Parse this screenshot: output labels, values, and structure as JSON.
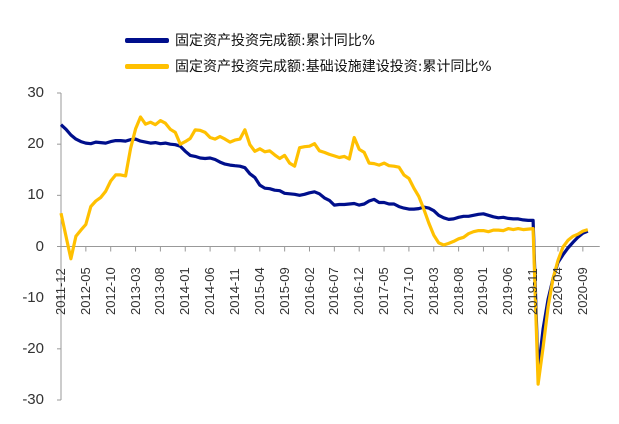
{
  "chart_data": {
    "type": "line",
    "title": "",
    "xlabel": "",
    "ylabel": "",
    "ylim": [
      -30,
      30
    ],
    "yticks": [
      30,
      20,
      10,
      0,
      -10,
      -20,
      -30
    ],
    "xtick_labels": [
      "2011-12",
      "2012-05",
      "2012-10",
      "2013-03",
      "2013-08",
      "2014-01",
      "2014-06",
      "2014-11",
      "2015-04",
      "2015-09",
      "2016-02",
      "2016-07",
      "2016-12",
      "2017-05",
      "2017-10",
      "2018-03",
      "2018-08",
      "2019-01",
      "2019-06",
      "2019-11",
      "2020-04",
      "2020-09"
    ],
    "grid": false,
    "legend_position": "top",
    "x_start": "2011-12",
    "x_end": "2020-12",
    "series": [
      {
        "name": "固定资产投资完成额:累计同比%",
        "color": "#000F8C",
        "values": [
          23.8,
          22.9,
          21.8,
          21.0,
          20.5,
          20.2,
          20.1,
          20.4,
          20.3,
          20.2,
          20.5,
          20.7,
          20.7,
          20.6,
          20.9,
          21.0,
          20.6,
          20.4,
          20.2,
          20.3,
          20.1,
          20.2,
          20.0,
          19.9,
          19.6,
          18.6,
          17.8,
          17.6,
          17.3,
          17.2,
          17.3,
          17.0,
          16.5,
          16.1,
          15.9,
          15.8,
          15.7,
          15.4,
          14.2,
          13.5,
          12.0,
          11.4,
          11.3,
          11.0,
          10.9,
          10.4,
          10.3,
          10.2,
          10.0,
          10.2,
          10.5,
          10.7,
          10.3,
          9.5,
          9.0,
          8.1,
          8.2,
          8.2,
          8.3,
          8.4,
          8.1,
          8.3,
          8.9,
          9.2,
          8.6,
          8.6,
          8.3,
          8.3,
          7.8,
          7.5,
          7.3,
          7.3,
          7.4,
          7.7,
          7.5,
          7.0,
          6.1,
          5.6,
          5.3,
          5.4,
          5.7,
          5.9,
          5.9,
          6.1,
          6.3,
          6.4,
          6.1,
          5.8,
          5.6,
          5.7,
          5.5,
          5.4,
          5.4,
          5.2,
          5.1,
          5.1,
          -24.5,
          -16.1,
          -10.3,
          -6.3,
          -3.1,
          -1.6,
          -0.3,
          0.8,
          1.8,
          2.6,
          3.0
        ],
        "start": "2011-12"
      },
      {
        "name": "固定资产投资完成额:基础设施建设投资:累计同比%",
        "color": "#FFC000",
        "values": [
          6.5,
          2.0,
          -2.4,
          2.0,
          3.2,
          4.3,
          7.8,
          8.9,
          9.6,
          10.8,
          12.8,
          14.0,
          14.0,
          13.8,
          19.2,
          23.0,
          25.3,
          23.9,
          24.3,
          23.8,
          24.6,
          24.1,
          22.9,
          22.3,
          20.0,
          20.5,
          21.1,
          22.8,
          22.7,
          22.3,
          21.3,
          21.0,
          21.5,
          21.0,
          20.4,
          20.8,
          21.0,
          22.8,
          19.9,
          18.6,
          19.1,
          18.5,
          18.7,
          17.9,
          17.2,
          17.8,
          16.3,
          15.7,
          19.3,
          19.5,
          19.6,
          20.1,
          18.7,
          18.4,
          18.0,
          17.7,
          17.4,
          17.6,
          17.1,
          21.3,
          19.0,
          18.4,
          16.3,
          16.2,
          15.9,
          16.3,
          15.8,
          15.7,
          15.5,
          14.0,
          13.3,
          11.4,
          9.8,
          7.3,
          4.6,
          2.2,
          0.7,
          0.3,
          0.6,
          1.0,
          1.5,
          1.8,
          2.5,
          2.9,
          3.1,
          3.1,
          2.9,
          3.2,
          3.2,
          3.1,
          3.5,
          3.3,
          3.5,
          3.3,
          3.4,
          3.5,
          -26.9,
          -19.7,
          -11.8,
          -6.3,
          -2.7,
          -0.1,
          1.2,
          2.0,
          2.4,
          3.0,
          3.3
        ],
        "start": "2011-12"
      }
    ]
  },
  "legend": {
    "items": [
      {
        "label": "固定资产投资完成额:累计同比%",
        "color": "#000F8C"
      },
      {
        "label": "固定资产投资完成额:基础设施建设投资:累计同比%",
        "color": "#FFC000"
      }
    ]
  },
  "axes": {
    "y_labels": [
      "30",
      "20",
      "10",
      "0",
      "-10",
      "-20",
      "-30"
    ]
  }
}
